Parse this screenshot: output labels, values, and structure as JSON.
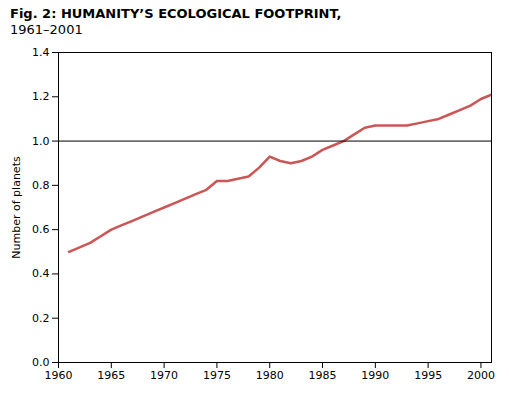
{
  "chart_data": {
    "type": "line",
    "title": "Fig. 2: HUMANITY’S ECOLOGICAL FOOTPRINT,",
    "subtitle": "1961–2001",
    "ylabel": "Number of planets",
    "x": [
      1961,
      1962,
      1963,
      1964,
      1965,
      1966,
      1967,
      1968,
      1969,
      1970,
      1971,
      1972,
      1973,
      1974,
      1975,
      1976,
      1977,
      1978,
      1979,
      1980,
      1981,
      1982,
      1983,
      1984,
      1985,
      1986,
      1987,
      1988,
      1989,
      1990,
      1991,
      1992,
      1993,
      1994,
      1995,
      1996,
      1997,
      1998,
      1999,
      2000,
      2001
    ],
    "values": [
      0.5,
      0.52,
      0.54,
      0.57,
      0.6,
      0.62,
      0.64,
      0.66,
      0.68,
      0.7,
      0.72,
      0.74,
      0.76,
      0.78,
      0.82,
      0.82,
      0.83,
      0.84,
      0.88,
      0.93,
      0.91,
      0.9,
      0.91,
      0.93,
      0.96,
      0.98,
      1.0,
      1.03,
      1.06,
      1.07,
      1.07,
      1.07,
      1.07,
      1.08,
      1.09,
      1.1,
      1.12,
      1.14,
      1.16,
      1.19,
      1.21
    ],
    "color": "#cc5555",
    "hline": 1.0,
    "xlim": [
      1960,
      2001
    ],
    "ylim": [
      0,
      1.4
    ],
    "xticks": [
      1960,
      1965,
      1970,
      1975,
      1980,
      1985,
      1990,
      1995,
      2000
    ],
    "yticks": [
      {
        "value": 0,
        "label": "0.0"
      },
      0.2,
      0.4,
      0.6,
      0.8,
      {
        "value": 1.0,
        "label": "1.0"
      },
      1.2,
      1.4
    ],
    "grid": false
  }
}
